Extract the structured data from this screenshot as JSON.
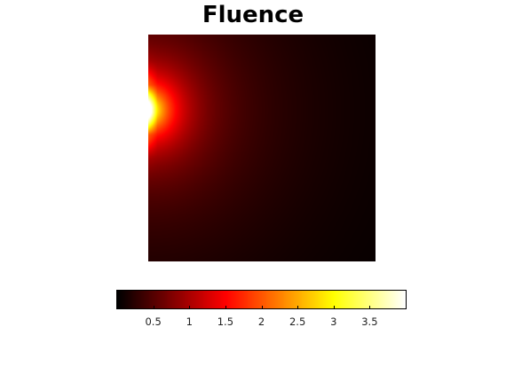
{
  "title": "Fluence",
  "chart_data": {
    "type": "heatmap",
    "title": "Fluence",
    "colormap": "hot",
    "colorbar": {
      "orientation": "horizontal",
      "placement": "bottom",
      "range": [
        0,
        4
      ],
      "ticks": [
        0.5,
        1,
        1.5,
        2,
        2.5,
        3,
        3.5
      ],
      "tick_labels": [
        "0.5",
        "1",
        "1.5",
        "2",
        "2.5",
        "3",
        "3.5"
      ]
    },
    "source": {
      "edge": "left",
      "y_center_fraction": 0.33,
      "peak_value": 4
    },
    "axes_visible": false
  }
}
